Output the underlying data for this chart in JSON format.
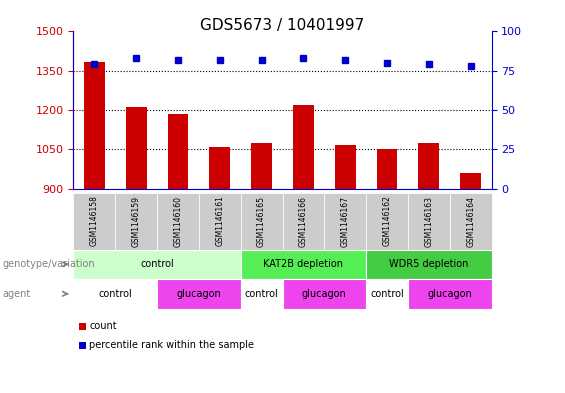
{
  "title": "GDS5673 / 10401997",
  "samples": [
    "GSM1146158",
    "GSM1146159",
    "GSM1146160",
    "GSM1146161",
    "GSM1146165",
    "GSM1146166",
    "GSM1146167",
    "GSM1146162",
    "GSM1146163",
    "GSM1146164"
  ],
  "counts": [
    1385,
    1210,
    1185,
    1060,
    1075,
    1220,
    1065,
    1050,
    1075,
    960
  ],
  "percentiles": [
    79,
    83,
    82,
    82,
    82,
    83,
    82,
    80,
    79,
    78
  ],
  "ylim_left": [
    900,
    1500
  ],
  "ylim_right": [
    0,
    100
  ],
  "yticks_left": [
    900,
    1050,
    1200,
    1350,
    1500
  ],
  "yticks_right": [
    0,
    25,
    50,
    75,
    100
  ],
  "bar_color": "#cc0000",
  "dot_color": "#0000cc",
  "background_color": "#ffffff",
  "genotype_groups": [
    {
      "label": "control",
      "start": 0,
      "end": 4,
      "color": "#ccffcc"
    },
    {
      "label": "KAT2B depletion",
      "start": 4,
      "end": 7,
      "color": "#55ee55"
    },
    {
      "label": "WDR5 depletion",
      "start": 7,
      "end": 10,
      "color": "#44cc44"
    }
  ],
  "agent_groups": [
    {
      "label": "control",
      "start": 0,
      "end": 2,
      "color": "#ffffff"
    },
    {
      "label": "glucagon",
      "start": 2,
      "end": 4,
      "color": "#ee44ee"
    },
    {
      "label": "control",
      "start": 4,
      "end": 5,
      "color": "#ffffff"
    },
    {
      "label": "glucagon",
      "start": 5,
      "end": 7,
      "color": "#ee44ee"
    },
    {
      "label": "control",
      "start": 7,
      "end": 8,
      "color": "#ffffff"
    },
    {
      "label": "glucagon",
      "start": 8,
      "end": 10,
      "color": "#ee44ee"
    }
  ],
  "legend_items": [
    {
      "label": "count",
      "color": "#cc0000"
    },
    {
      "label": "percentile rank within the sample",
      "color": "#0000cc"
    }
  ],
  "left_label_color": "#cc0000",
  "right_label_color": "#0000cc"
}
